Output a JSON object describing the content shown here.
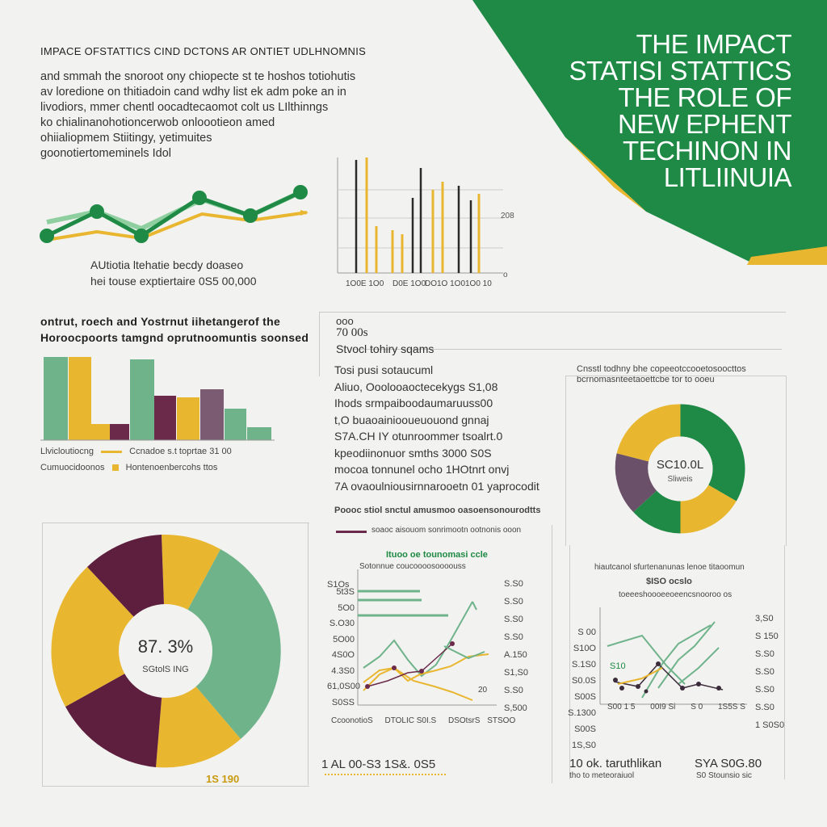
{
  "banner": {
    "lines": [
      "THE IMPACT",
      "STATISI STATTICS",
      "THE ROLE OF",
      "NEW EPHENT",
      "TECHINON  IN",
      "LITLIINUIA"
    ],
    "colors": {
      "green": "#1e8a45",
      "dark_green": "#177a3c",
      "yellow": "#e9b630"
    }
  },
  "intro": {
    "heading": "IMPACE OFSTATTICS CIND DCTONS AR ONTIET UDLHNOMNIS",
    "paragraph": [
      "and smmah the snoroot ony chiopecte st te hoshos totiohutis",
      "av loredione on thitiadoin cand wdhy list ek adm poke an in",
      "livodiors, mmer chentl oocadtecaomot colt us LIlthinngs",
      "ko chialinanohotioncerwob onloootieon amed",
      "ohiialiopmem Stiitingy, yetimuites",
      "goonotiertomeminels Idol"
    ]
  },
  "chart_line_top": {
    "caption": [
      "AUtiotia ltehatie becdy doaseo",
      "hei touse exptiertaire 0S5 00,000"
    ],
    "colors": [
      "#1e8a45",
      "#8fcf9f",
      "#e9b630"
    ]
  },
  "chart_bars_top": {
    "xlabels": [
      "1O0E 1O0",
      "D0E 1O0",
      "DO1O 1O0",
      "1O0 10"
    ],
    "right_label": "208"
  },
  "chart_bars_left": {
    "title": [
      "ontrut, roech and Yostrnut iihetangerof the",
      "Horoocpoorts tamgnd oprutnoomuntis soonsed"
    ],
    "legend": [
      {
        "text": "Llvicloutiocng",
        "color": "#e9b630"
      },
      {
        "text": "Ccnadoe s.t toprtae  31 00",
        "color": "#6fb38b"
      },
      {
        "text": "Cumuocidoonos",
        "color": "#6b2a4a"
      },
      {
        "text": "Hontenoenbercohs ttos",
        "color": "#e9b630"
      }
    ]
  },
  "stats_text": {
    "top": "ooo",
    "number": "70 00s",
    "subhead": "Stvocl tohiry sqams",
    "lines": [
      "Tosi pusi sotaucuml",
      "Aliuo, Ooolooaoctecekygs S1,08",
      "Ihods srmpaiboodaumaruuss00",
      "t,O buaoainiooueuouond gnnaj",
      "S7A.CH IY otunroommer tsoalrt.0",
      "kpeodiinonuor smths 3000 S0S",
      "mocoa tonnunel ocho 1HOtnrt onvj",
      "7A ovaoulniousirnnarooetn 01 yaprocodit"
    ]
  },
  "donut_right": {
    "title": [
      "Cnsstl todhny bhe copeeotccooetosoocttos",
      "bcrnomasnteetaoettcbe tor to ooeu"
    ],
    "center": [
      "SC10.0L",
      "Sliweis"
    ]
  },
  "pie_big": {
    "center": [
      "87. 3%",
      "SGtolS ING"
    ],
    "footer": "1S 190"
  },
  "line_mid": {
    "title": "Poooc stiol snctul amusmoo oasoensonourodtts",
    "subtitle": "soaoc aisouom sonrimootn  ootnonis ooon",
    "chart_title": "Ituoo oe tounomasi ccle",
    "subcap": "Sotonnue coucoooosoooouss",
    "left_ticks": [
      "S1Os",
      "5t3S",
      "5O0",
      "S.O30",
      "5O00",
      "4S0O",
      "4.3S0",
      "61,0S00",
      "S0SS"
    ],
    "right_ticks": [
      "S.S0",
      "S.S0",
      "S.S0",
      "S.S0",
      "A.150",
      "S1,S0",
      "S.S0",
      "S,500"
    ],
    "xlabels": [
      "CcoonotioS",
      "DTOLIC S0I.S",
      "DSOtsrS  ",
      "STSOO"
    ],
    "annotation": "20",
    "footer": "1 AL 00-S3 1S&. 0S5"
  },
  "line_right": {
    "title": "hiautcanol sfurtenanunas lenoe titaoomun",
    "value": "$ISO ocslo",
    "subtitle": "toeeeshoooeeoeencsnooroo os",
    "left_ticks": [
      "S 00",
      "S10O",
      "S.1S0",
      "S0.0S",
      "S00S",
      "S.1300",
      "S00S",
      "1S,S0"
    ],
    "right_ticks": [
      "3,S0",
      "S 150",
      "S.S0",
      "S.S0",
      "S.S0",
      "S.S0",
      "1 S0S0"
    ],
    "annotation": "S10",
    "xlabels": [
      "S00 1 5",
      "00I9 Si",
      "S 0",
      "1S5S  S"
    ],
    "footer_left": "10 ok. taruthlikan",
    "footer_left_sub": "tho to  meteoraiuol",
    "footer_right": "SYA S0G.80",
    "footer_right_sub": "S0 Stounsio sic"
  }
}
